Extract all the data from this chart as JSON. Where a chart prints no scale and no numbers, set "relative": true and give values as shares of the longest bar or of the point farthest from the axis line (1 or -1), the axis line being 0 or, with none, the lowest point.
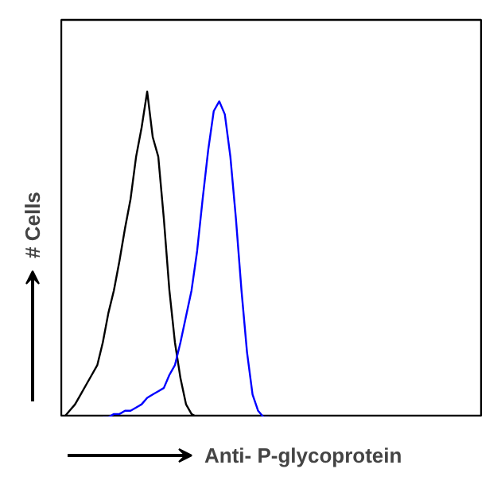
{
  "chart_data": {
    "type": "line",
    "relative": true,
    "xlabel": "Anti- P-glycoprotein",
    "ylabel": "# Cells",
    "categories": [
      null,
      null,
      null,
      null,
      null,
      null,
      null,
      null,
      null,
      null,
      null,
      null,
      null,
      null,
      null,
      null,
      null,
      null,
      null,
      null,
      null,
      null,
      null,
      null,
      null,
      null,
      null,
      null,
      null,
      null,
      null,
      null,
      null,
      null,
      null,
      null,
      null,
      null,
      null,
      null,
      null,
      null,
      null,
      null,
      null,
      null,
      null,
      null,
      null,
      null,
      null,
      null,
      null,
      null,
      null,
      null,
      null,
      null,
      null,
      null,
      null,
      null,
      null,
      null,
      null,
      null,
      null,
      null,
      null,
      null,
      null,
      null,
      null,
      null,
      null,
      null
    ],
    "series": [
      {
        "color": "#000000",
        "values": [
          0.0,
          0.02,
          0.04,
          0.07,
          0.1,
          0.13,
          0.16,
          0.23,
          0.32,
          0.39,
          0.48,
          0.58,
          0.67,
          0.8,
          0.89,
          1.0,
          0.86,
          0.8,
          0.61,
          0.39,
          0.23,
          0.12,
          0.04,
          0.01,
          0,
          0,
          0,
          0,
          0,
          0,
          0,
          0,
          0,
          0,
          0,
          0,
          0,
          0,
          null,
          null,
          null,
          null,
          null,
          null,
          null,
          null,
          null,
          null,
          null,
          null,
          null,
          null,
          null,
          null,
          null,
          null,
          null,
          null,
          null,
          null,
          null,
          null,
          null,
          null,
          null,
          null,
          null,
          null,
          null,
          null,
          null,
          null,
          null,
          null,
          null,
          null
        ]
      },
      {
        "color": "#0000ff",
        "values": [
          null,
          null,
          null,
          null,
          null,
          null,
          null,
          0.0,
          0.0,
          0.01,
          0.01,
          0.02,
          0.02,
          0.03,
          0.04,
          0.06,
          0.07,
          0.08,
          0.09,
          0.13,
          0.16,
          0.23,
          0.31,
          0.39,
          0.51,
          0.67,
          0.82,
          0.94,
          0.97,
          0.93,
          0.8,
          0.61,
          0.39,
          0.2,
          0.07,
          0.02,
          0.0,
          0.0,
          null,
          null,
          null,
          null,
          null,
          null,
          null,
          null,
          null,
          null,
          null,
          null,
          null,
          null,
          null,
          null,
          null,
          null,
          null,
          null,
          null,
          null,
          null,
          null,
          null,
          null,
          null,
          null,
          null,
          null,
          null,
          null,
          null,
          null,
          null,
          null,
          null,
          null
        ]
      }
    ],
    "grid": false,
    "marker": "none",
    "line_style": "solid"
  }
}
